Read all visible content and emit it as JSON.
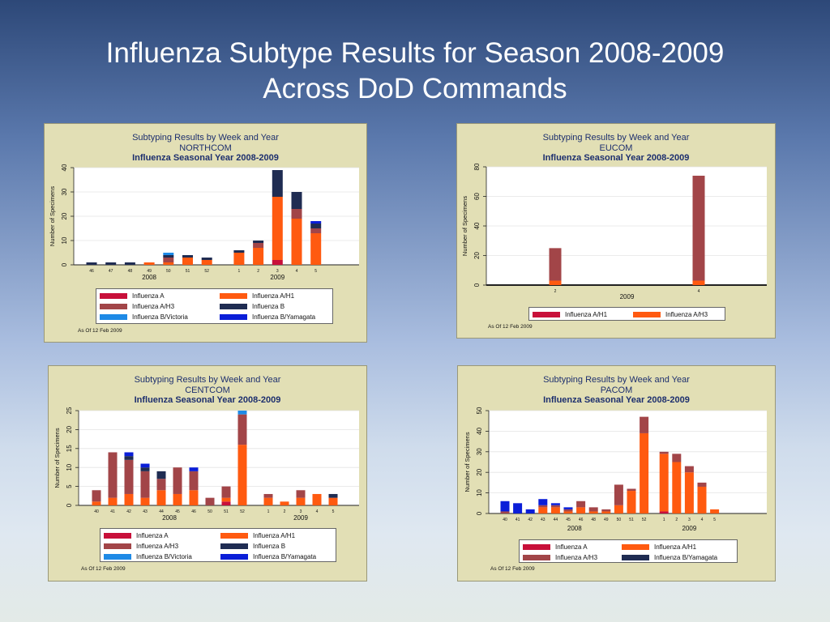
{
  "slide": {
    "title_line1": "Influenza Subtype Results for Season 2008-2009",
    "title_line2": "Across DoD Commands"
  },
  "colors": {
    "Influenza A": "#c8103a",
    "Influenza A/H1": "#ff5a10",
    "Influenza A/H3": "#a24548",
    "Influenza B": "#1f2c52",
    "Influenza B/Victoria": "#1e8ae6",
    "Influenza B/Yamagata": "#0a1ed8"
  },
  "chart_data": [
    {
      "id": "northcom",
      "type": "bar",
      "stacked": true,
      "title_line1": "Subtyping Results by Week and Year",
      "title_line2": "NORTHCOM",
      "title_line3": "Influenza Seasonal Year 2008-2009",
      "ylabel": "Number of Specimens",
      "ylim": [
        0,
        40
      ],
      "yticks": [
        0,
        10,
        20,
        30,
        40
      ],
      "grid": true,
      "groups": [
        {
          "label": "2008",
          "weeks": [
            "46",
            "47",
            "48",
            "49",
            "50",
            "51",
            "52"
          ]
        },
        {
          "label": "2009",
          "weeks": [
            "1",
            "2",
            "3",
            "4",
            "5"
          ]
        }
      ],
      "series": [
        {
          "name": "Influenza A",
          "values": [
            0,
            0,
            0,
            0,
            0,
            0,
            0,
            0,
            0,
            2,
            0,
            0
          ]
        },
        {
          "name": "Influenza A/H1",
          "values": [
            0,
            0,
            0,
            1,
            1,
            3,
            2,
            5,
            7,
            26,
            19,
            13
          ]
        },
        {
          "name": "Influenza A/H3",
          "values": [
            0,
            0,
            0,
            0,
            2,
            0,
            0,
            0,
            2,
            0,
            4,
            2
          ]
        },
        {
          "name": "Influenza B",
          "values": [
            1,
            1,
            1,
            0,
            1,
            1,
            1,
            1,
            1,
            11,
            7,
            2
          ]
        },
        {
          "name": "Influenza B/Victoria",
          "values": [
            0,
            0,
            0,
            0,
            1,
            0,
            0,
            0,
            0,
            0,
            0,
            0
          ]
        },
        {
          "name": "Influenza B/Yamagata",
          "values": [
            0,
            0,
            0,
            0,
            0,
            0,
            0,
            0,
            0,
            0,
            0,
            1
          ]
        }
      ],
      "legend": [
        "Influenza A",
        "Influenza A/H1",
        "Influenza A/H3",
        "Influenza B",
        "Influenza B/Victoria",
        "Influenza B/Yamagata"
      ],
      "legend_position": "bottom",
      "as_of": "As Of  12 Feb 2009"
    },
    {
      "id": "eucom",
      "type": "bar",
      "stacked": true,
      "title_line1": "Subtyping Results by Week and Year",
      "title_line2": "EUCOM",
      "title_line3": "Influenza Seasonal Year 2008-2009",
      "ylabel": "Number of Specimens",
      "ylim": [
        0,
        80
      ],
      "yticks": [
        0,
        20,
        40,
        60,
        80
      ],
      "grid": true,
      "groups": [
        {
          "label": "2009",
          "weeks": [
            "2",
            "4"
          ]
        }
      ],
      "series": [
        {
          "name": "Influenza A/H1",
          "values": [
            3,
            3
          ]
        },
        {
          "name": "Influenza A/H3",
          "values": [
            22,
            71
          ]
        }
      ],
      "legend": [
        "Influenza A/H1",
        "Influenza A/H3"
      ],
      "legend_position": "bottom",
      "as_of": "As Of  12 Feb 2009"
    },
    {
      "id": "centcom",
      "type": "bar",
      "stacked": true,
      "title_line1": "Subtyping Results by Week and Year",
      "title_line2": "CENTCOM",
      "title_line3": "Influenza Seasonal Year 2008-2009",
      "ylabel": "Number of Specimens",
      "ylim": [
        0,
        25
      ],
      "yticks": [
        0,
        5,
        10,
        15,
        20,
        25
      ],
      "grid": true,
      "groups": [
        {
          "label": "2008",
          "weeks": [
            "40",
            "41",
            "42",
            "43",
            "44",
            "45",
            "46",
            "50",
            "51",
            "52"
          ]
        },
        {
          "label": "2009",
          "weeks": [
            "1",
            "2",
            "3",
            "4",
            "5"
          ]
        }
      ],
      "series": [
        {
          "name": "Influenza A",
          "values": [
            0,
            0,
            0,
            0,
            0,
            0,
            0,
            0,
            1,
            0,
            0,
            0,
            0,
            0,
            0
          ]
        },
        {
          "name": "Influenza A/H1",
          "values": [
            1,
            2,
            3,
            2,
            4,
            3,
            4,
            0,
            1,
            16,
            2,
            1,
            2,
            3,
            2
          ]
        },
        {
          "name": "Influenza A/H3",
          "values": [
            3,
            12,
            9,
            7,
            3,
            7,
            5,
            2,
            3,
            8,
            1,
            0,
            2,
            0,
            0
          ]
        },
        {
          "name": "Influenza B",
          "values": [
            0,
            0,
            1,
            1,
            2,
            0,
            0,
            0,
            0,
            0,
            0,
            0,
            0,
            0,
            1
          ]
        },
        {
          "name": "Influenza B/Victoria",
          "values": [
            0,
            0,
            0,
            0,
            0,
            0,
            0,
            0,
            0,
            1,
            0,
            0,
            0,
            0,
            0
          ]
        },
        {
          "name": "Influenza B/Yamagata",
          "values": [
            0,
            0,
            1,
            1,
            0,
            0,
            1,
            0,
            0,
            0,
            0,
            0,
            0,
            0,
            0
          ]
        }
      ],
      "legend": [
        "Influenza A",
        "Influenza A/H1",
        "Influenza A/H3",
        "Influenza B",
        "Influenza B/Victoria",
        "Influenza B/Yamagata"
      ],
      "legend_position": "bottom",
      "as_of": "As Of  12 Feb 2009"
    },
    {
      "id": "pacom",
      "type": "bar",
      "stacked": true,
      "title_line1": "Subtyping Results by Week and Year",
      "title_line2": "PACOM",
      "title_line3": "Influenza Seasonal Year 2008-2009",
      "ylabel": "Number of Specimens",
      "ylim": [
        0,
        50
      ],
      "yticks": [
        0,
        10,
        20,
        30,
        40,
        50
      ],
      "grid": true,
      "groups": [
        {
          "label": "2008",
          "weeks": [
            "40",
            "41",
            "42",
            "43",
            "44",
            "45",
            "46",
            "48",
            "49",
            "50",
            "51",
            "52"
          ]
        },
        {
          "label": "2009",
          "weeks": [
            "1",
            "2",
            "3",
            "4",
            "5"
          ]
        }
      ],
      "series": [
        {
          "name": "Influenza A",
          "values": [
            0,
            0,
            0,
            0,
            0,
            0,
            0,
            0,
            0,
            0,
            0,
            0,
            1,
            0,
            0,
            0,
            0
          ]
        },
        {
          "name": "Influenza A/H1",
          "values": [
            0,
            0,
            0,
            3,
            3,
            1,
            3,
            1,
            1,
            4,
            11,
            39,
            28,
            25,
            20,
            13,
            2
          ]
        },
        {
          "name": "Influenza A/H3",
          "values": [
            1,
            0,
            0,
            1,
            1,
            1,
            3,
            2,
            1,
            10,
            1,
            8,
            1,
            4,
            3,
            2,
            0
          ]
        },
        {
          "name": "Influenza B/Yamagata",
          "values": [
            5,
            5,
            2,
            3,
            1,
            1,
            0,
            0,
            0,
            0,
            0,
            0,
            0,
            0,
            0,
            0,
            0
          ]
        }
      ],
      "legend": [
        "Influenza A",
        "Influenza A/H1",
        "Influenza A/H3",
        "Influenza B/Yamagata"
      ],
      "legend_position": "bottom",
      "as_of": "As Of  12 Feb 2009"
    }
  ]
}
